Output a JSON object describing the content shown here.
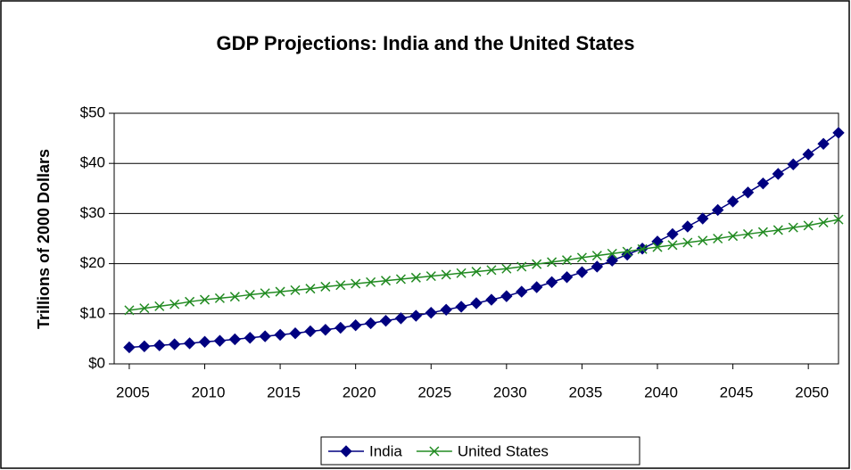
{
  "chart_data": {
    "type": "line",
    "title": "GDP Projections: India and the United States",
    "y_label": "Trillions of 2000 Dollars",
    "x": [
      2005,
      2006,
      2007,
      2008,
      2009,
      2010,
      2011,
      2012,
      2013,
      2014,
      2015,
      2016,
      2017,
      2018,
      2019,
      2020,
      2021,
      2022,
      2023,
      2024,
      2025,
      2026,
      2027,
      2028,
      2029,
      2030,
      2031,
      2032,
      2033,
      2034,
      2035,
      2036,
      2037,
      2038,
      2039,
      2040,
      2041,
      2042,
      2043,
      2044,
      2045,
      2046,
      2047,
      2048,
      2049,
      2050,
      2051,
      2052
    ],
    "xlim": [
      2004,
      2052
    ],
    "xticks": [
      2005,
      2010,
      2015,
      2020,
      2025,
      2030,
      2035,
      2040,
      2045,
      2050
    ],
    "ylim": [
      0,
      50
    ],
    "yticks": [
      {
        "value": 0,
        "label": "$0"
      },
      {
        "value": 10,
        "label": "$10"
      },
      {
        "value": 20,
        "label": "$20"
      },
      {
        "value": 30,
        "label": "$30"
      },
      {
        "value": 40,
        "label": "$40"
      },
      {
        "value": 50,
        "label": "$50"
      }
    ],
    "grid": true,
    "legend": "bottom",
    "series": [
      {
        "name": "India",
        "color": "#000080",
        "marker": "diamond",
        "values": [
          3.3,
          3.5,
          3.7,
          3.9,
          4.1,
          4.4,
          4.6,
          4.9,
          5.2,
          5.5,
          5.8,
          6.1,
          6.5,
          6.8,
          7.2,
          7.7,
          8.1,
          8.6,
          9.1,
          9.6,
          10.2,
          10.8,
          11.4,
          12.1,
          12.8,
          13.5,
          14.4,
          15.3,
          16.3,
          17.3,
          18.3,
          19.4,
          20.6,
          21.8,
          23.0,
          24.4,
          25.9,
          27.4,
          29.0,
          30.7,
          32.4,
          34.2,
          36.0,
          37.9,
          39.8,
          41.8,
          43.9,
          46.1
        ]
      },
      {
        "name": "United States",
        "color": "#228b22",
        "marker": "x",
        "values": [
          10.7,
          11.1,
          11.5,
          11.9,
          12.4,
          12.8,
          13.1,
          13.4,
          13.8,
          14.1,
          14.4,
          14.7,
          15.0,
          15.4,
          15.7,
          16.0,
          16.3,
          16.6,
          16.9,
          17.2,
          17.5,
          17.8,
          18.1,
          18.4,
          18.7,
          19.0,
          19.4,
          19.9,
          20.3,
          20.7,
          21.2,
          21.6,
          22.0,
          22.4,
          22.9,
          23.3,
          23.7,
          24.2,
          24.6,
          25.0,
          25.5,
          25.9,
          26.3,
          26.7,
          27.2,
          27.6,
          28.2,
          28.8
        ]
      }
    ]
  }
}
